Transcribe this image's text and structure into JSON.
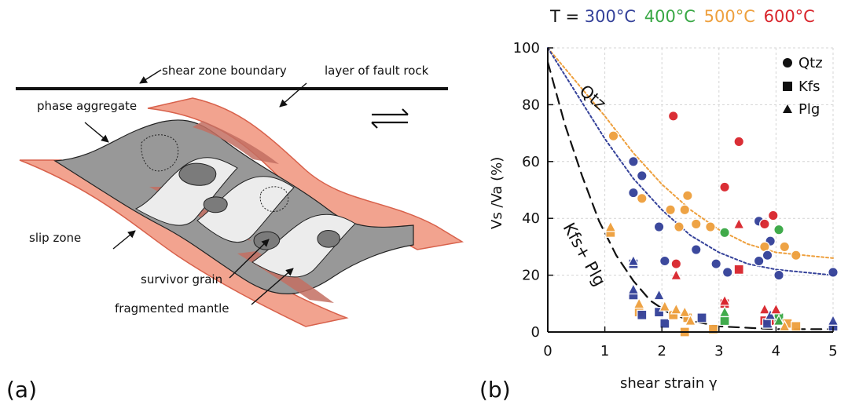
{
  "panel_a": {
    "letter": "(a)",
    "labels": {
      "shear_zone_boundary": "shear zone boundary",
      "layer_of_fault_rock": "layer of fault rock",
      "phase_aggregate": "phase aggregate",
      "slip_zone": "slip zone",
      "survivor_grain": "survivor grain",
      "fragmented_mantle": "fragmented mantle"
    }
  },
  "panel_b": {
    "letter": "(b)",
    "temperature": {
      "prefix": "T = ",
      "items": [
        {
          "label": "300°C",
          "color": "#35429a"
        },
        {
          "label": "400°C",
          "color": "#39a845"
        },
        {
          "label": "500°C",
          "color": "#eea03e"
        },
        {
          "label": "600°C",
          "color": "#d9262d"
        }
      ]
    },
    "legend": [
      {
        "symbol": "circle",
        "label": "Qtz"
      },
      {
        "symbol": "square",
        "label": "Kfs"
      },
      {
        "symbol": "triangle",
        "label": "Plg"
      }
    ],
    "curve_labels": {
      "qtz": "Qtz",
      "kfs_plg": "Kfs+ Plg"
    },
    "axis": {
      "ylabel": "Vs /Va (%)",
      "xlabel": "shear strain γ"
    }
  },
  "chart_data": {
    "type": "scatter",
    "xlabel": "shear strain γ",
    "ylabel": "Vs /Va (%)",
    "xlim": [
      0,
      5
    ],
    "ylim": [
      0,
      100
    ],
    "x_ticks": [
      0,
      1,
      2,
      3,
      4,
      5
    ],
    "y_ticks": [
      0,
      20,
      40,
      60,
      80,
      100
    ],
    "grid": true,
    "legend": {
      "position": "top-right",
      "items": [
        {
          "symbol": "circle",
          "label": "Qtz"
        },
        {
          "symbol": "square",
          "label": "Kfs"
        },
        {
          "symbol": "triangle",
          "label": "Plg"
        }
      ]
    },
    "series": [
      {
        "name": "Qtz",
        "symbol": "circle",
        "points": [
          {
            "x": 1.15,
            "y": 69,
            "temperature": "500°C"
          },
          {
            "x": 1.5,
            "y": 60,
            "temperature": "300°C"
          },
          {
            "x": 1.65,
            "y": 55,
            "temperature": "300°C"
          },
          {
            "x": 1.5,
            "y": 49,
            "temperature": "300°C"
          },
          {
            "x": 1.65,
            "y": 47,
            "temperature": "500°C"
          },
          {
            "x": 2.2,
            "y": 76,
            "temperature": "600°C"
          },
          {
            "x": 2.45,
            "y": 48,
            "temperature": "500°C"
          },
          {
            "x": 2.15,
            "y": 43,
            "temperature": "500°C"
          },
          {
            "x": 2.4,
            "y": 43,
            "temperature": "500°C"
          },
          {
            "x": 1.95,
            "y": 37,
            "temperature": "300°C"
          },
          {
            "x": 2.3,
            "y": 37,
            "temperature": "500°C"
          },
          {
            "x": 2.6,
            "y": 38,
            "temperature": "500°C"
          },
          {
            "x": 2.85,
            "y": 37,
            "temperature": "500°C"
          },
          {
            "x": 2.05,
            "y": 25,
            "temperature": "300°C"
          },
          {
            "x": 2.25,
            "y": 24,
            "temperature": "600°C"
          },
          {
            "x": 2.6,
            "y": 29,
            "temperature": "300°C"
          },
          {
            "x": 2.95,
            "y": 24,
            "temperature": "300°C"
          },
          {
            "x": 3.15,
            "y": 21,
            "temperature": "300°C"
          },
          {
            "x": 3.1,
            "y": 51,
            "temperature": "600°C"
          },
          {
            "x": 3.1,
            "y": 35,
            "temperature": "400°C"
          },
          {
            "x": 3.35,
            "y": 67,
            "temperature": "600°C"
          },
          {
            "x": 3.7,
            "y": 39,
            "temperature": "300°C"
          },
          {
            "x": 3.8,
            "y": 38,
            "temperature": "600°C"
          },
          {
            "x": 3.9,
            "y": 32,
            "temperature": "300°C"
          },
          {
            "x": 3.8,
            "y": 30,
            "temperature": "500°C"
          },
          {
            "x": 3.85,
            "y": 27,
            "temperature": "300°C"
          },
          {
            "x": 3.7,
            "y": 25,
            "temperature": "300°C"
          },
          {
            "x": 3.95,
            "y": 41,
            "temperature": "600°C"
          },
          {
            "x": 4.05,
            "y": 36,
            "temperature": "400°C"
          },
          {
            "x": 4.15,
            "y": 30,
            "temperature": "500°C"
          },
          {
            "x": 4.35,
            "y": 27,
            "temperature": "500°C"
          },
          {
            "x": 4.05,
            "y": 20,
            "temperature": "300°C"
          },
          {
            "x": 5.0,
            "y": 21,
            "temperature": "300°C"
          }
        ]
      },
      {
        "name": "Kfs",
        "symbol": "square",
        "points": [
          {
            "x": 1.1,
            "y": 35,
            "temperature": "500°C"
          },
          {
            "x": 1.5,
            "y": 24,
            "temperature": "300°C"
          },
          {
            "x": 1.5,
            "y": 13,
            "temperature": "300°C"
          },
          {
            "x": 1.6,
            "y": 7,
            "temperature": "500°C"
          },
          {
            "x": 1.65,
            "y": 6,
            "temperature": "300°C"
          },
          {
            "x": 1.95,
            "y": 7,
            "temperature": "300°C"
          },
          {
            "x": 2.05,
            "y": 3,
            "temperature": "300°C"
          },
          {
            "x": 2.2,
            "y": 6,
            "temperature": "500°C"
          },
          {
            "x": 2.45,
            "y": 5,
            "temperature": "500°C"
          },
          {
            "x": 2.4,
            "y": 0,
            "temperature": "500°C"
          },
          {
            "x": 2.7,
            "y": 5,
            "temperature": "300°C"
          },
          {
            "x": 2.9,
            "y": 1,
            "temperature": "500°C"
          },
          {
            "x": 3.1,
            "y": 10,
            "temperature": "600°C"
          },
          {
            "x": 3.1,
            "y": 4,
            "temperature": "400°C"
          },
          {
            "x": 3.35,
            "y": 22,
            "temperature": "600°C"
          },
          {
            "x": 3.8,
            "y": 4,
            "temperature": "600°C"
          },
          {
            "x": 3.85,
            "y": 3,
            "temperature": "300°C"
          },
          {
            "x": 4.0,
            "y": 4,
            "temperature": "600°C"
          },
          {
            "x": 4.05,
            "y": 5,
            "temperature": "400°C"
          },
          {
            "x": 4.2,
            "y": 3,
            "temperature": "500°C"
          },
          {
            "x": 4.35,
            "y": 2,
            "temperature": "500°C"
          },
          {
            "x": 5.0,
            "y": 2,
            "temperature": "300°C"
          }
        ]
      },
      {
        "name": "Plg",
        "symbol": "triangle",
        "points": [
          {
            "x": 1.1,
            "y": 37,
            "temperature": "500°C"
          },
          {
            "x": 1.5,
            "y": 25,
            "temperature": "300°C"
          },
          {
            "x": 1.5,
            "y": 15,
            "temperature": "300°C"
          },
          {
            "x": 1.6,
            "y": 10,
            "temperature": "500°C"
          },
          {
            "x": 1.95,
            "y": 13,
            "temperature": "300°C"
          },
          {
            "x": 2.05,
            "y": 9,
            "temperature": "500°C"
          },
          {
            "x": 2.25,
            "y": 20,
            "temperature": "600°C"
          },
          {
            "x": 2.25,
            "y": 8,
            "temperature": "500°C"
          },
          {
            "x": 2.4,
            "y": 7,
            "temperature": "500°C"
          },
          {
            "x": 2.5,
            "y": 4,
            "temperature": "500°C"
          },
          {
            "x": 3.1,
            "y": 11,
            "temperature": "600°C"
          },
          {
            "x": 3.1,
            "y": 7,
            "temperature": "400°C"
          },
          {
            "x": 3.35,
            "y": 38,
            "temperature": "600°C"
          },
          {
            "x": 3.8,
            "y": 8,
            "temperature": "600°C"
          },
          {
            "x": 3.9,
            "y": 6,
            "temperature": "300°C"
          },
          {
            "x": 4.0,
            "y": 8,
            "temperature": "600°C"
          },
          {
            "x": 4.05,
            "y": 4,
            "temperature": "400°C"
          },
          {
            "x": 4.15,
            "y": 2,
            "temperature": "500°C"
          },
          {
            "x": 5.0,
            "y": 4,
            "temperature": "300°C"
          }
        ]
      }
    ],
    "trend_curves": [
      {
        "label": "Qtz",
        "color": "#eea03e",
        "style": "dotted",
        "points": [
          [
            0,
            100
          ],
          [
            0.5,
            88
          ],
          [
            1,
            76
          ],
          [
            1.5,
            63
          ],
          [
            2,
            52
          ],
          [
            2.5,
            43
          ],
          [
            3,
            36
          ],
          [
            3.5,
            31
          ],
          [
            4,
            28
          ],
          [
            4.5,
            27
          ],
          [
            5,
            26
          ]
        ]
      },
      {
        "label": "Qtz",
        "color": "#35429a",
        "style": "dotted",
        "points": [
          [
            0,
            100
          ],
          [
            0.5,
            84
          ],
          [
            1,
            68
          ],
          [
            1.5,
            54
          ],
          [
            2,
            43
          ],
          [
            2.5,
            34
          ],
          [
            3,
            28
          ],
          [
            3.5,
            24
          ],
          [
            4,
            22
          ],
          [
            4.5,
            21
          ],
          [
            5,
            20
          ]
        ]
      },
      {
        "label": "Kfs+ Plg",
        "color": "#111111",
        "style": "dashed",
        "points": [
          [
            0,
            95
          ],
          [
            0.3,
            73
          ],
          [
            0.6,
            55
          ],
          [
            0.9,
            39
          ],
          [
            1.2,
            27
          ],
          [
            1.5,
            18
          ],
          [
            1.8,
            11
          ],
          [
            2.1,
            7
          ],
          [
            2.5,
            4
          ],
          [
            3,
            2
          ],
          [
            4,
            1
          ],
          [
            5,
            1
          ]
        ]
      }
    ]
  }
}
